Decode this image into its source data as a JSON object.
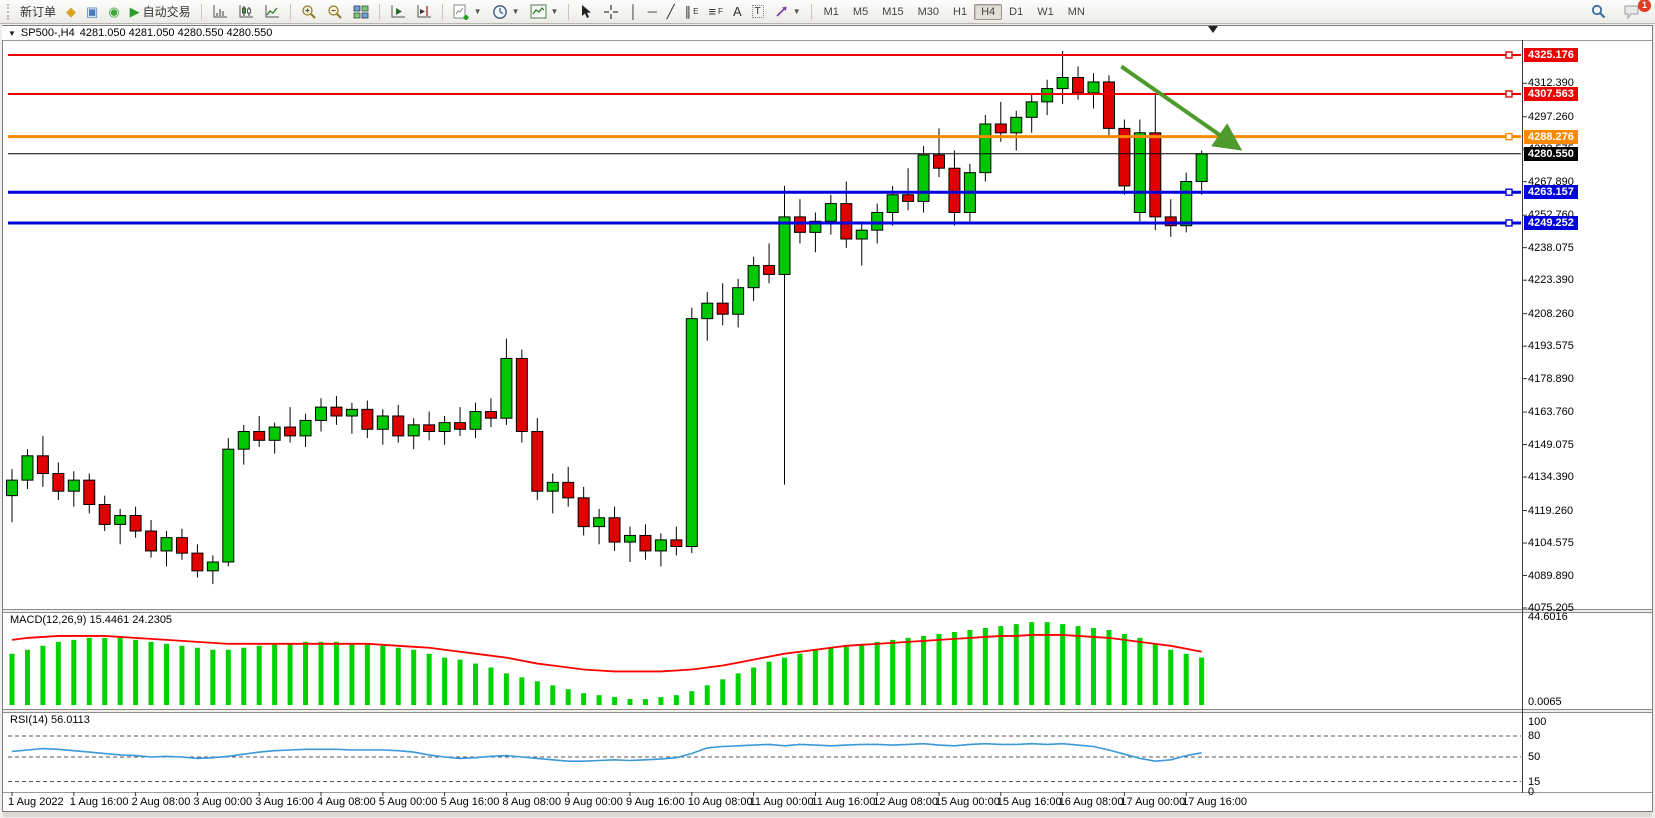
{
  "toolbar": {
    "new_order_label": "新订单",
    "autotrade_label": "自动交易",
    "notification_count": "1",
    "active_timeframe": "H4",
    "timeframes": [
      "M1",
      "M5",
      "M15",
      "M30",
      "H1",
      "H4",
      "D1",
      "W1",
      "MN"
    ],
    "items": [
      {
        "name": "new-order",
        "type": "button",
        "label": "新订单"
      },
      {
        "name": "tag",
        "type": "icon",
        "glyph": "◆",
        "color": "#d9a520"
      },
      {
        "name": "vps",
        "type": "icon",
        "glyph": "▣",
        "color": "#4a7ebb"
      },
      {
        "name": "signals",
        "type": "icon",
        "glyph": "◉",
        "color": "#3aa33a"
      },
      {
        "name": "algo-trading",
        "type": "icon-label",
        "glyph": "▶",
        "color": "#2e9e2e",
        "label": "自动交易"
      },
      {
        "type": "sep"
      },
      {
        "name": "bars-chart",
        "type": "svg"
      },
      {
        "name": "candles-chart",
        "type": "svg"
      },
      {
        "name": "line-chart",
        "type": "svg"
      },
      {
        "type": "sep"
      },
      {
        "name": "zoom-in",
        "type": "svg"
      },
      {
        "name": "zoom-out",
        "type": "svg"
      },
      {
        "name": "tile-windows",
        "type": "svg"
      },
      {
        "type": "sep"
      },
      {
        "name": "auto-scroll",
        "type": "svg"
      },
      {
        "name": "chart-shift",
        "type": "svg"
      },
      {
        "type": "sep"
      },
      {
        "name": "new-chart",
        "type": "svg",
        "caret": true
      },
      {
        "name": "periods",
        "type": "svg",
        "caret": true
      },
      {
        "name": "templates",
        "type": "svg",
        "caret": true
      },
      {
        "type": "sep"
      },
      {
        "name": "cursor",
        "type": "svg"
      },
      {
        "name": "crosshair",
        "type": "svg"
      },
      {
        "name": "vertical-line",
        "type": "icon",
        "glyph": "│",
        "color": "#333"
      },
      {
        "name": "horizontal-line",
        "type": "icon",
        "glyph": "─",
        "color": "#333"
      },
      {
        "name": "trendline",
        "type": "icon",
        "glyph": "╱",
        "color": "#333"
      },
      {
        "name": "equidistant-channel",
        "type": "icon",
        "glyph": "∥",
        "sub": "E",
        "color": "#333"
      },
      {
        "name": "fibonacci",
        "type": "icon",
        "glyph": "≡",
        "sub": "F",
        "color": "#333"
      },
      {
        "name": "text",
        "type": "icon",
        "glyph": "A",
        "color": "#333"
      },
      {
        "name": "text-label",
        "type": "icon",
        "glyph": "T",
        "boxed": true,
        "color": "#333"
      },
      {
        "name": "arrows",
        "type": "svg",
        "caret": true
      },
      {
        "type": "sep"
      }
    ]
  },
  "chart_header": {
    "symbol_title": "SP500-,H4",
    "ohlc_text": "4281.050 4281.050 4280.550 4280.550"
  },
  "price_axis": {
    "ticks": [
      "4312.390",
      "4297.260",
      "4282.575",
      "4267.890",
      "4252.760",
      "4238.075",
      "4223.390",
      "4208.260",
      "4193.575",
      "4178.890",
      "4163.760",
      "4149.075",
      "4134.390",
      "4119.260",
      "4104.575",
      "4089.890",
      "4075.205"
    ]
  },
  "indicator_macd": {
    "label": "MACD(12,26,9) 15.4461 24.2305",
    "axis_max": "44.6016",
    "axis_min": "0.0065"
  },
  "indicator_rsi": {
    "label": "RSI(14) 56.0113",
    "axis_labels": [
      "100",
      "80",
      "50",
      "15",
      "0"
    ],
    "axis_values": [
      100,
      80,
      50,
      15,
      0
    ],
    "level_lines": [
      80,
      50,
      15
    ]
  },
  "colors": {
    "bull": "#00c800",
    "bear": "#e00000",
    "candle_outline": "#000000",
    "macd_histogram": "#00d200",
    "macd_signal": "#ff0000",
    "rsi_line": "#3a9ad9",
    "arrow": "#4e9b2d",
    "line_red": "#ee0000",
    "line_orange": "#ff8a00",
    "line_blue": "#0000dd",
    "current_price_bg": "#000000"
  },
  "chart_data": {
    "type": "candlestick",
    "title": "SP500- H4 chart",
    "timeframe": "H4",
    "bars_per_label": 4,
    "ylim": [
      4075.205,
      4335.0
    ],
    "x_labels": [
      "1 Aug 2022",
      "1 Aug 16:00",
      "2 Aug 08:00",
      "3 Aug 00:00",
      "3 Aug 16:00",
      "4 Aug 08:00",
      "5 Aug 00:00",
      "5 Aug 16:00",
      "8 Aug 08:00",
      "9 Aug 00:00",
      "9 Aug 16:00",
      "10 Aug 08:00",
      "11 Aug 00:00",
      "11 Aug 16:00",
      "12 Aug 08:00",
      "15 Aug 00:00",
      "15 Aug 16:00",
      "16 Aug 08:00",
      "17 Aug 00:00",
      "17 Aug 16:00"
    ],
    "candles_ohlc": [
      [
        4126,
        4138,
        4114,
        4133
      ],
      [
        4133,
        4147,
        4129,
        4144
      ],
      [
        4144,
        4153,
        4130,
        4136
      ],
      [
        4136,
        4141,
        4124,
        4128
      ],
      [
        4128,
        4137,
        4121,
        4133
      ],
      [
        4133,
        4136,
        4118,
        4122
      ],
      [
        4122,
        4126,
        4110,
        4113
      ],
      [
        4113,
        4120,
        4104,
        4117
      ],
      [
        4117,
        4121,
        4107,
        4110
      ],
      [
        4110,
        4115,
        4098,
        4101
      ],
      [
        4101,
        4110,
        4094,
        4107
      ],
      [
        4107,
        4111,
        4097,
        4100
      ],
      [
        4100,
        4104,
        4089,
        4092
      ],
      [
        4092,
        4099,
        4086,
        4096
      ],
      [
        4096,
        4152,
        4094,
        4147
      ],
      [
        4147,
        4158,
        4140,
        4155
      ],
      [
        4155,
        4162,
        4148,
        4151
      ],
      [
        4151,
        4159,
        4145,
        4157
      ],
      [
        4157,
        4166,
        4150,
        4153
      ],
      [
        4153,
        4163,
        4148,
        4160
      ],
      [
        4160,
        4170,
        4155,
        4166
      ],
      [
        4166,
        4171,
        4158,
        4162
      ],
      [
        4162,
        4168,
        4154,
        4165
      ],
      [
        4165,
        4169,
        4152,
        4156
      ],
      [
        4156,
        4165,
        4149,
        4162
      ],
      [
        4162,
        4167,
        4150,
        4153
      ],
      [
        4153,
        4161,
        4147,
        4158
      ],
      [
        4158,
        4164,
        4151,
        4155
      ],
      [
        4155,
        4162,
        4149,
        4159
      ],
      [
        4159,
        4166,
        4153,
        4156
      ],
      [
        4156,
        4168,
        4152,
        4164
      ],
      [
        4164,
        4170,
        4157,
        4161
      ],
      [
        4161,
        4197,
        4158,
        4188
      ],
      [
        4188,
        4192,
        4150,
        4155
      ],
      [
        4155,
        4161,
        4124,
        4128
      ],
      [
        4128,
        4136,
        4118,
        4132
      ],
      [
        4132,
        4139,
        4121,
        4125
      ],
      [
        4125,
        4130,
        4108,
        4112
      ],
      [
        4112,
        4120,
        4104,
        4116
      ],
      [
        4116,
        4121,
        4101,
        4105
      ],
      [
        4105,
        4112,
        4096,
        4108
      ],
      [
        4108,
        4113,
        4097,
        4101
      ],
      [
        4101,
        4109,
        4094,
        4106
      ],
      [
        4106,
        4112,
        4099,
        4103
      ],
      [
        4103,
        4211,
        4100,
        4206
      ],
      [
        4206,
        4218,
        4196,
        4213
      ],
      [
        4213,
        4222,
        4203,
        4208
      ],
      [
        4208,
        4224,
        4202,
        4220
      ],
      [
        4220,
        4234,
        4214,
        4230
      ],
      [
        4230,
        4240,
        4222,
        4226
      ],
      [
        4226,
        4266,
        4131,
        4252
      ],
      [
        4252,
        4260,
        4240,
        4245
      ],
      [
        4245,
        4254,
        4236,
        4250
      ],
      [
        4250,
        4262,
        4244,
        4258
      ],
      [
        4258,
        4268,
        4238,
        4242
      ],
      [
        4242,
        4250,
        4230,
        4246
      ],
      [
        4246,
        4258,
        4240,
        4254
      ],
      [
        4254,
        4266,
        4248,
        4262
      ],
      [
        4262,
        4274,
        4255,
        4259
      ],
      [
        4259,
        4284,
        4254,
        4280
      ],
      [
        4280,
        4292,
        4270,
        4274
      ],
      [
        4274,
        4282,
        4248,
        4254
      ],
      [
        4254,
        4276,
        4250,
        4272
      ],
      [
        4272,
        4298,
        4268,
        4294
      ],
      [
        4294,
        4304,
        4286,
        4290
      ],
      [
        4290,
        4300,
        4282,
        4297
      ],
      [
        4297,
        4308,
        4290,
        4304
      ],
      [
        4304,
        4314,
        4298,
        4310
      ],
      [
        4310,
        4327,
        4303,
        4315
      ],
      [
        4315,
        4320,
        4305,
        4308
      ],
      [
        4308,
        4317,
        4301,
        4313
      ],
      [
        4313,
        4316,
        4288,
        4292
      ],
      [
        4292,
        4296,
        4262,
        4266
      ],
      [
        4254,
        4296,
        4250,
        4290
      ],
      [
        4290,
        4308,
        4246,
        4252
      ],
      [
        4252,
        4260,
        4243,
        4248
      ],
      [
        4248,
        4272,
        4245,
        4268
      ],
      [
        4268,
        4282,
        4262,
        4280.5
      ]
    ],
    "hlines": [
      {
        "price": 4325.176,
        "label": "4325.176",
        "color": "#ee0000",
        "width": 2
      },
      {
        "price": 4307.563,
        "label": "4307.563",
        "color": "#ee0000",
        "width": 2
      },
      {
        "price": 4288.276,
        "label": "4288.276",
        "color": "#ff8a00",
        "width": 3
      },
      {
        "price": 4263.157,
        "label": "4263.157",
        "color": "#0000dd",
        "width": 3
      },
      {
        "price": 4249.252,
        "label": "4249.252",
        "color": "#0000dd",
        "width": 3
      }
    ],
    "current_price": {
      "price": 4280.55,
      "label": "4280.550"
    },
    "annotation_arrow": {
      "from_bar": 71.8,
      "from_price": 4320,
      "to_bar": 79.2,
      "to_price": 4284
    },
    "macd": {
      "range": [
        0,
        44.6016
      ],
      "histogram": [
        26,
        28,
        30,
        32,
        33,
        34,
        34,
        34,
        33,
        32,
        31,
        30,
        29,
        28,
        28,
        29,
        30,
        31,
        31,
        32,
        32,
        32,
        31,
        31,
        30,
        29,
        28,
        26,
        24,
        23,
        21,
        19,
        16,
        14,
        12,
        10,
        8,
        6,
        5,
        4,
        3,
        3,
        4,
        5,
        7,
        10,
        13,
        16,
        19,
        22,
        24,
        26,
        28,
        29,
        30,
        31,
        32,
        33,
        34,
        35,
        36,
        37,
        38,
        39,
        40,
        41,
        42,
        42,
        41,
        40,
        39,
        38,
        36,
        34,
        31,
        28,
        26,
        24
      ],
      "signal": [
        33,
        34,
        34.5,
        35,
        35,
        35,
        35,
        34.5,
        34,
        33.5,
        33,
        32.5,
        32,
        31.5,
        31,
        31,
        31,
        31,
        31,
        31,
        31,
        31,
        31,
        31,
        30.5,
        30,
        29.5,
        29,
        28,
        27,
        26,
        25,
        24,
        22.5,
        21,
        20,
        19,
        18,
        17.5,
        17,
        17,
        17,
        17,
        17.5,
        18,
        19,
        20,
        21.5,
        23,
        24.5,
        26,
        27,
        28,
        29,
        30,
        30.5,
        31,
        31.5,
        32,
        32.5,
        33,
        33.5,
        34,
        34.5,
        35,
        35,
        35.5,
        35.5,
        35.5,
        35,
        34.5,
        34,
        33,
        32,
        31,
        30,
        28.5,
        27
      ]
    },
    "rsi": {
      "range": [
        0,
        100
      ],
      "values": [
        58,
        60,
        62,
        61,
        59,
        57,
        55,
        53,
        52,
        50,
        51,
        50,
        48,
        49,
        51,
        54,
        57,
        59,
        60,
        61,
        61,
        61,
        60,
        60,
        60,
        59,
        57,
        53,
        50,
        48,
        49,
        51,
        52,
        50,
        48,
        46,
        44,
        44,
        45,
        46,
        45,
        46,
        47,
        49,
        55,
        63,
        65,
        66,
        67,
        68,
        66,
        68,
        67,
        66,
        67,
        68,
        68,
        67,
        68,
        69,
        67,
        66,
        68,
        69,
        68,
        68,
        69,
        68,
        69,
        67,
        65,
        60,
        54,
        48,
        44,
        46,
        52,
        56
      ]
    }
  }
}
